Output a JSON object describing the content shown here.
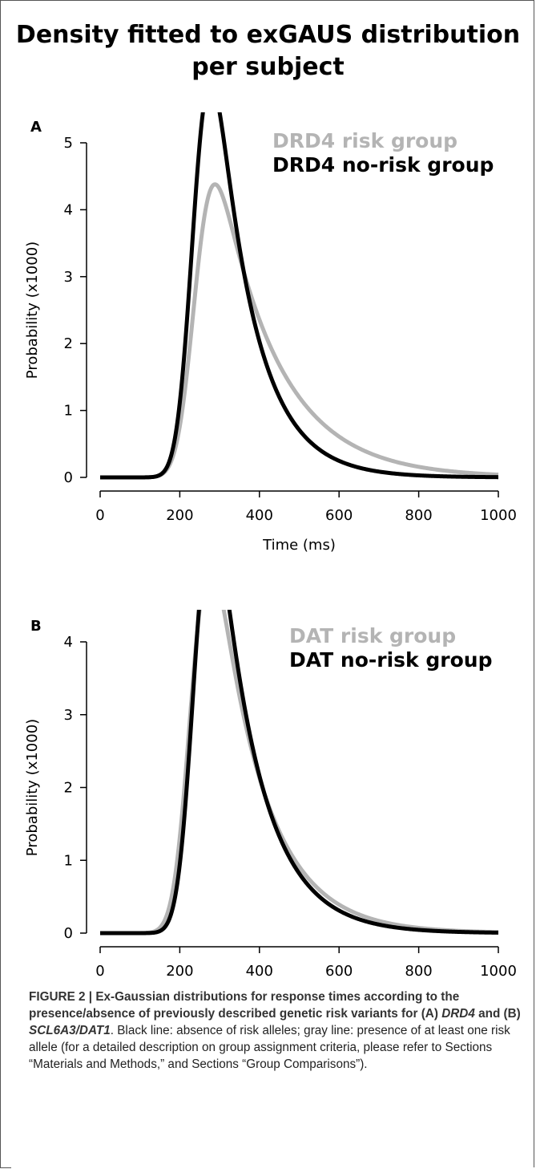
{
  "title_line1": "Density fitted to exGAUS distribution",
  "title_line2": "per subject",
  "colors": {
    "risk": "#b4b4b4",
    "norisk": "#000000"
  },
  "chart_data": [
    {
      "type": "line",
      "panel_label": "A",
      "xlabel": "Time (ms)",
      "ylabel": "Probability (x1000)",
      "xlim": [
        0,
        1000
      ],
      "ylim": [
        0,
        5
      ],
      "xticks": [
        "0",
        "200",
        "400",
        "600",
        "800",
        "1000"
      ],
      "yticks": [
        "0",
        "1",
        "2",
        "3",
        "4",
        "5"
      ],
      "legend_position": "top-right",
      "series": [
        {
          "name": "DRD4 risk group",
          "color": "#b4b4b4",
          "mu": 240,
          "sigma": 35,
          "tau": 148
        },
        {
          "name": "DRD4 no-risk group",
          "color": "#000000",
          "mu": 238,
          "sigma": 33,
          "tau": 95
        }
      ]
    },
    {
      "type": "line",
      "panel_label": "B",
      "xlabel": "Time (ms)",
      "ylabel": "Probability (x1000)",
      "xlim": [
        0,
        1000
      ],
      "ylim": [
        0,
        4
      ],
      "xticks": [
        "0",
        "200",
        "400",
        "600",
        "800",
        "1000"
      ],
      "yticks": [
        "0",
        "1",
        "2",
        "3",
        "4"
      ],
      "legend_position": "top-right",
      "series": [
        {
          "name": "DAT risk group",
          "color": "#b4b4b4",
          "mu": 232,
          "sigma": 35,
          "tau": 118
        },
        {
          "name": "DAT no-risk group",
          "color": "#000000",
          "mu": 240,
          "sigma": 33,
          "tau": 103
        }
      ]
    }
  ],
  "caption": {
    "label": "FIGURE 2 | Ex-Gaussian distributions for response times according to the presence/absence of previously described genetic risk variants for (A) ",
    "gene1": "DRD4",
    "and": " and (B) ",
    "gene2": "SCL6A3/DAT1",
    "body": ". Black line: absence of risk alleles; gray line: presence of at least one risk allele (for a detailed description on group assignment criteria, please refer to Sections “Materials and Methods,” and Sections “Group Comparisons”)."
  }
}
